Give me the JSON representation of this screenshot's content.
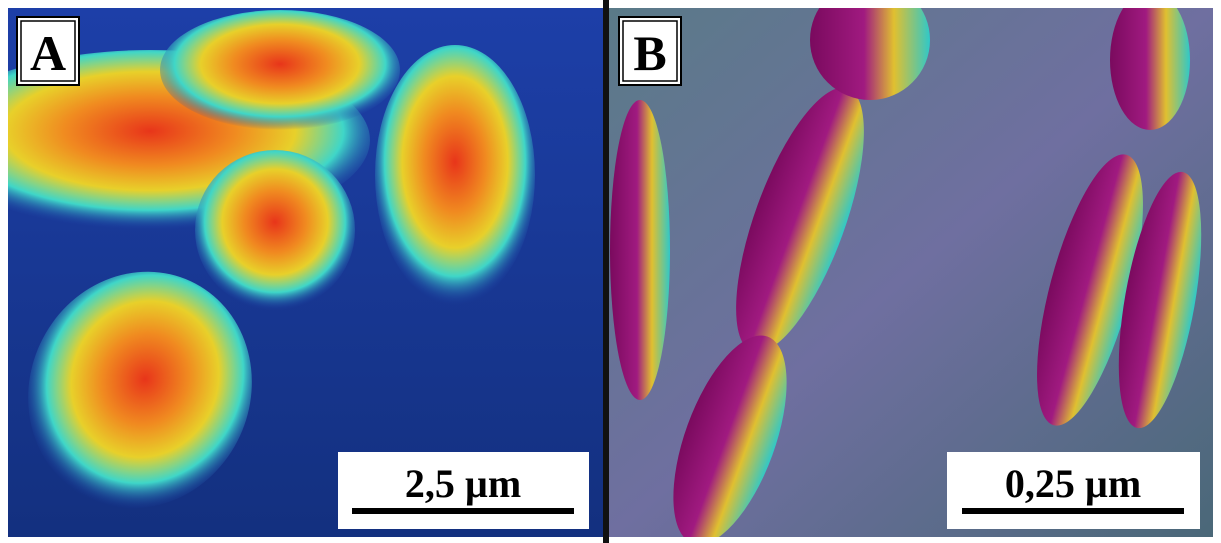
{
  "panels": [
    {
      "label": "A",
      "scale_bar": "2,5 µm"
    },
    {
      "label": "B",
      "scale_bar": "0,25 µm"
    }
  ]
}
